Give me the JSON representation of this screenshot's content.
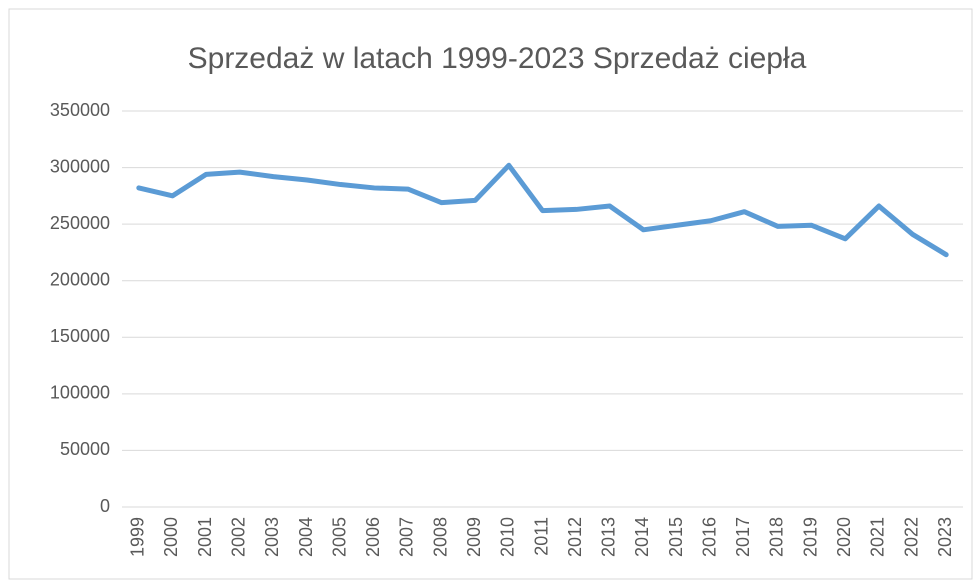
{
  "chart_data": {
    "type": "line",
    "title": "Sprzedaż w latach 1999-2023 Sprzedaż ciepła",
    "categories": [
      "1999",
      "2000",
      "2001",
      "2002",
      "2003",
      "2004",
      "2005",
      "2006",
      "2007",
      "2008",
      "2009",
      "2010",
      "2011",
      "2012",
      "2013",
      "2014",
      "2015",
      "2016",
      "2017",
      "2018",
      "2019",
      "2020",
      "2021",
      "2022",
      "2023"
    ],
    "series": [
      {
        "name": "Sprzedaż ciepła",
        "color": "#5b9bd5",
        "values": [
          282000,
          275000,
          294000,
          296000,
          292000,
          289000,
          285000,
          282000,
          281000,
          269000,
          271000,
          302000,
          262000,
          263000,
          266000,
          245000,
          249000,
          253000,
          261000,
          248000,
          249000,
          237000,
          266000,
          241000,
          223000
        ]
      }
    ],
    "ylim": [
      0,
      350000
    ],
    "yticks": [
      0,
      50000,
      100000,
      150000,
      200000,
      250000,
      300000,
      350000
    ],
    "grid": true
  }
}
